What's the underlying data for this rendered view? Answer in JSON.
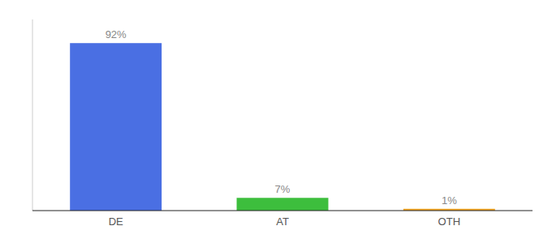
{
  "chart_data": {
    "type": "bar",
    "categories": [
      "DE",
      "AT",
      "OTH"
    ],
    "values": [
      92,
      7,
      1
    ],
    "value_labels": [
      "92%",
      "7%",
      "1%"
    ],
    "colors": [
      "#4A6FE3",
      "#3DBE3D",
      "#F5A623"
    ],
    "ylim": [
      0,
      105
    ],
    "data_labels": true,
    "tick_labels": "x"
  }
}
